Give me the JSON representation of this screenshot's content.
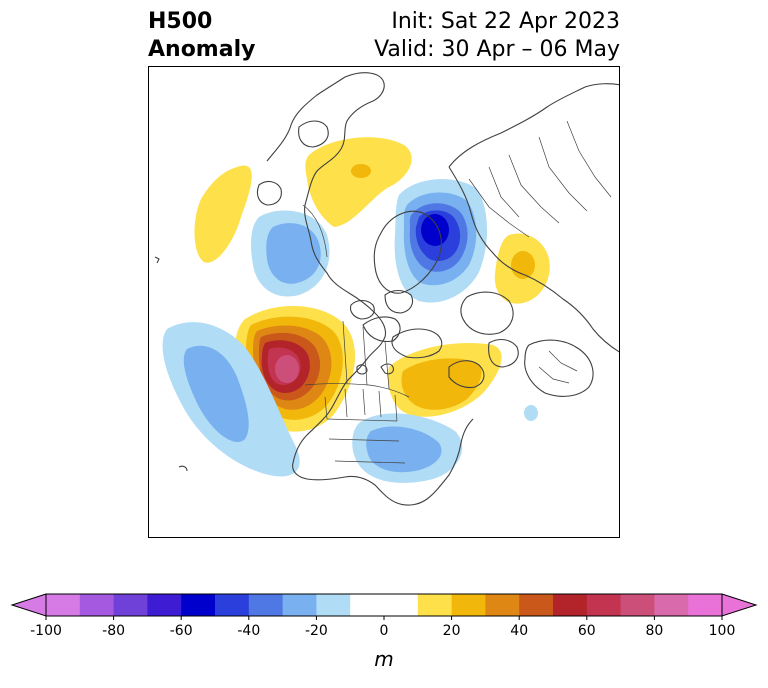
{
  "header": {
    "title_line1": "H500",
    "title_line2": "Anomaly",
    "init_text": "Init: Sat 22 Apr 2023",
    "valid_text": "Valid: 30 Apr – 06 May"
  },
  "map": {
    "projection": "north-polar-stereographic",
    "variable": "500 hPa geopotential height anomaly",
    "features": [
      "coastlines",
      "country borders",
      "US state borders",
      "Canadian province borders"
    ]
  },
  "colorbar": {
    "units": "m",
    "min": -100,
    "max": 100,
    "step": 10,
    "extend": "both",
    "ticks": [
      -100,
      -80,
      -60,
      -40,
      -20,
      0,
      20,
      40,
      60,
      80,
      100
    ],
    "colors": [
      "#d67ae6",
      "#a459e0",
      "#7041d8",
      "#3e1cd4",
      "#0000cc",
      "#2a3fdc",
      "#4f78e4",
      "#78b0f0",
      "#b0dcf6",
      "#ffffff",
      "#ffffff",
      "#fde04a",
      "#f2b70b",
      "#de8714",
      "#c9581a",
      "#b2242a",
      "#c2344f",
      "#cc4f7a",
      "#d96aab",
      "#e872d8"
    ],
    "under_color": "#d67ae6",
    "over_color": "#e872d8"
  }
}
